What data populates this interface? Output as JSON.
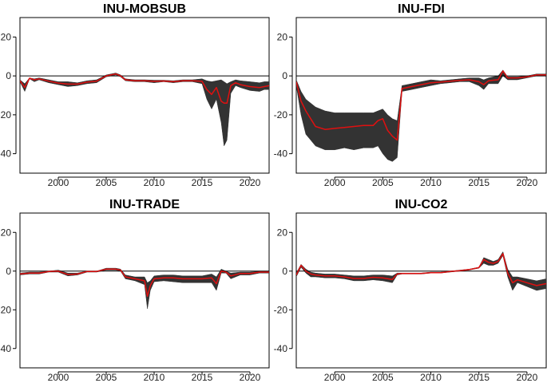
{
  "chart_data": [
    {
      "type": "area",
      "title": "INU-MOBSUB",
      "xlim": [
        1996,
        2022
      ],
      "ylim": [
        -50,
        30
      ],
      "xticks": [
        2000,
        2005,
        2010,
        2015,
        2020
      ],
      "yticks": [
        20,
        0,
        -20,
        -40
      ],
      "band_color": "#333333",
      "line_color": "#e01010",
      "series": [
        {
          "x": [
            1996,
            1996.5,
            1997,
            1997.5,
            1998,
            1999,
            2000,
            2001,
            2002,
            2003,
            2004,
            2005,
            2005.5,
            2006,
            2006.5,
            2007,
            2008,
            2009,
            2010,
            2011,
            2012,
            2013,
            2014,
            2015,
            2015.5,
            2016,
            2016.5,
            2017,
            2017.3,
            2017.6,
            2018,
            2018.5,
            2019,
            2020,
            2021,
            2021.5,
            2022
          ],
          "upper": [
            -2,
            -4,
            -1,
            -1.5,
            -1,
            -2,
            -3,
            -3,
            -3.5,
            -2.5,
            -2,
            0.5,
            1,
            1.5,
            0.5,
            -1.5,
            -2,
            -2,
            -2.2,
            -2.2,
            -2.5,
            -2,
            -2,
            -1.5,
            -2.5,
            -3,
            -2.5,
            -2,
            -3,
            -4,
            -3,
            -2,
            -2.5,
            -3,
            -3.5,
            -3,
            -3
          ],
          "lower": [
            -3,
            -8,
            -1.5,
            -3,
            -2,
            -3.5,
            -4.5,
            -5.5,
            -5,
            -4,
            -3.5,
            -0.5,
            0,
            0.5,
            -0.5,
            -2.5,
            -3,
            -3,
            -3.5,
            -3,
            -3.5,
            -3,
            -3,
            -4,
            -12,
            -17,
            -12,
            -24,
            -36,
            -33,
            -9,
            -5,
            -6,
            -7.5,
            -8,
            -7,
            -7
          ],
          "line": [
            -2.5,
            -6,
            -1.2,
            -2,
            -1.5,
            -2.7,
            -3.7,
            -4.2,
            -4.2,
            -3.2,
            -2.7,
            0,
            0.5,
            1,
            0,
            -2,
            -2.5,
            -2.5,
            -2.8,
            -2.6,
            -3,
            -2.5,
            -2.5,
            -2.8,
            -7,
            -9.5,
            -6,
            -13,
            -14,
            -14,
            -5,
            -3.5,
            -4.5,
            -5.5,
            -6,
            -5.5,
            -5
          ]
        }
      ]
    },
    {
      "type": "area",
      "title": "INU-FDI",
      "xlim": [
        1996,
        2022
      ],
      "ylim": [
        -50,
        30
      ],
      "xticks": [
        2000,
        2005,
        2010,
        2015,
        2020
      ],
      "yticks": [
        20,
        0,
        -20,
        -40
      ],
      "band_color": "#333333",
      "line_color": "#e01010",
      "series": [
        {
          "x": [
            1996,
            1996.5,
            1997,
            1997.5,
            1998,
            1999,
            2000,
            2001,
            2002,
            2003,
            2004,
            2004.5,
            2005,
            2005.5,
            2006,
            2006.5,
            2007,
            2008,
            2009,
            2010,
            2011,
            2012,
            2013,
            2014,
            2015,
            2015.5,
            2016,
            2016.5,
            2017,
            2017.5,
            2018,
            2019,
            2020,
            2021,
            2022
          ],
          "upper": [
            -2,
            -8,
            -12,
            -14,
            -16,
            -18,
            -19,
            -19,
            -19,
            -19,
            -19,
            -18,
            -17,
            -20,
            -22,
            -23,
            -5,
            -4,
            -3,
            -2,
            -2.5,
            -2,
            -1.5,
            -1,
            -1,
            -2,
            -1,
            -0.5,
            0,
            3,
            -0.5,
            -0.5,
            0,
            1,
            1
          ],
          "lower": [
            -5,
            -20,
            -30,
            -33,
            -36,
            -38,
            -38,
            -37,
            -38,
            -37,
            -37,
            -36,
            -40,
            -43,
            -44,
            -42,
            -8,
            -7,
            -6,
            -5,
            -4,
            -3.5,
            -3,
            -3,
            -5,
            -7,
            -4,
            -4,
            -4,
            0,
            -2,
            -2,
            -1,
            0,
            0
          ],
          "line": [
            -3,
            -13,
            -18,
            -22,
            -26,
            -27.5,
            -27,
            -26.5,
            -26,
            -25.5,
            -25.5,
            -23,
            -22,
            -28,
            -31,
            -33,
            -6.5,
            -5.5,
            -4.5,
            -3.5,
            -3.2,
            -2.7,
            -2.3,
            -2,
            -3,
            -4.5,
            -2.5,
            -2.2,
            -2,
            2.5,
            -1,
            -1,
            -0.5,
            0.5,
            0.5
          ]
        }
      ]
    },
    {
      "type": "area",
      "title": "INU-TRADE",
      "xlim": [
        1996,
        2022
      ],
      "ylim": [
        -50,
        30
      ],
      "xticks": [
        2000,
        2005,
        2010,
        2015,
        2020
      ],
      "yticks": [
        20,
        0,
        -20,
        -40
      ],
      "band_color": "#333333",
      "line_color": "#e01010",
      "series": [
        {
          "x": [
            1996,
            1997,
            1998,
            1999,
            2000,
            2001,
            2002,
            2003,
            2004,
            2005,
            2006,
            2006.5,
            2007,
            2008,
            2009,
            2009.3,
            2009.6,
            2010,
            2011,
            2012,
            2013,
            2014,
            2015,
            2016,
            2016.5,
            2017,
            2017.5,
            2018,
            2019,
            2020,
            2021,
            2022
          ],
          "upper": [
            -1,
            -0.5,
            -0.5,
            0,
            0.5,
            -1,
            -1,
            0,
            0,
            1.5,
            1.5,
            1,
            -2,
            -3,
            -3,
            -6,
            -5,
            -2.5,
            -2,
            -2,
            -2.5,
            -2.5,
            -2.5,
            -1.5,
            -3,
            1,
            0,
            -1,
            -0.5,
            -0.5,
            0,
            0
          ],
          "lower": [
            -2,
            -1.5,
            -1.5,
            -0.5,
            -0.5,
            -2.5,
            -2,
            -0.5,
            -0.5,
            0.5,
            0.5,
            0,
            -4,
            -5,
            -7,
            -19.5,
            -10,
            -5.5,
            -5,
            -5.5,
            -6,
            -6,
            -6,
            -6,
            -10,
            -1,
            -1,
            -4,
            -2,
            -2,
            -1,
            -1
          ],
          "line": [
            -1.5,
            -1,
            -1,
            -0.2,
            0,
            -1.8,
            -1.5,
            -0.2,
            -0.2,
            1,
            1,
            0.5,
            -3,
            -4,
            -5,
            -13,
            -7.5,
            -4,
            -3.5,
            -3.5,
            -4,
            -4,
            -4,
            -3.5,
            -6.5,
            0,
            -0.5,
            -2.5,
            -1.2,
            -1.2,
            -0.5,
            -0.5
          ]
        }
      ]
    },
    {
      "type": "area",
      "title": "INU-CO2",
      "xlim": [
        1996,
        2022
      ],
      "ylim": [
        -50,
        30
      ],
      "xticks": [
        2000,
        2005,
        2010,
        2015,
        2020
      ],
      "yticks": [
        20,
        0,
        -20,
        -40
      ],
      "band_color": "#333333",
      "line_color": "#e01010",
      "series": [
        {
          "x": [
            1996,
            1996.5,
            1997,
            1997.5,
            1998,
            1999,
            2000,
            2001,
            2002,
            2003,
            2004,
            2005,
            2006,
            2006.5,
            2007,
            2008,
            2009,
            2010,
            2011,
            2012,
            2013,
            2014,
            2015,
            2015.5,
            2016,
            2016.5,
            2017,
            2017.5,
            2018,
            2018.5,
            2019,
            2020,
            2021,
            2022
          ],
          "upper": [
            -1,
            3.5,
            1,
            -0.5,
            -1,
            -1.5,
            -1.5,
            -2,
            -2.5,
            -2.5,
            -2,
            -2,
            -2.5,
            -1,
            -1,
            -1,
            -1,
            -0.5,
            -0.5,
            0,
            0.5,
            1,
            2,
            7,
            6,
            5,
            6,
            10,
            1,
            -3,
            -3,
            -4,
            -5,
            -4
          ],
          "lower": [
            -3,
            2,
            -1,
            -3,
            -3,
            -3.5,
            -3.5,
            -4,
            -5,
            -5,
            -4.5,
            -5,
            -6,
            -2,
            -1.5,
            -1.5,
            -1.5,
            -1,
            -1,
            -0.5,
            0,
            0.5,
            1.5,
            4,
            3,
            3,
            4,
            8,
            -3,
            -10,
            -6,
            -8,
            -10,
            -9
          ],
          "line": [
            -2,
            3,
            0,
            -1.5,
            -2,
            -2.5,
            -2.5,
            -3,
            -3.8,
            -3.8,
            -3.2,
            -3.5,
            -4.3,
            -1.5,
            -1.2,
            -1.2,
            -1.2,
            -0.8,
            -0.8,
            -0.2,
            0.2,
            0.8,
            1.8,
            6,
            4.5,
            4,
            5,
            9,
            -1,
            -6,
            -4.5,
            -6,
            -7.5,
            -6.5
          ]
        }
      ]
    }
  ]
}
